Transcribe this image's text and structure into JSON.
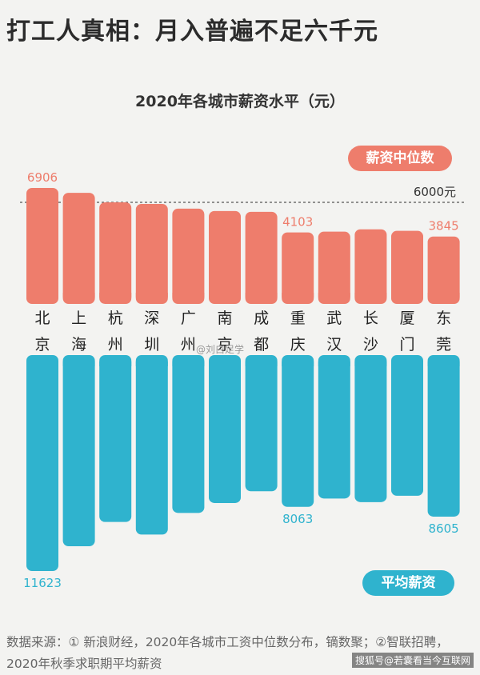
{
  "headline": "打工人真相：月入普遍不足六千元",
  "chart_data": {
    "type": "bar",
    "title": "2020年各城市薪资水平（元）",
    "categories": [
      "北京",
      "上海",
      "杭州",
      "深圳",
      "广州",
      "南京",
      "成都",
      "重庆",
      "武汉",
      "长沙",
      "厦门",
      "东莞"
    ],
    "series": [
      {
        "name": "薪资中位数",
        "color": "#ee7d6c",
        "values": [
          6906,
          6600,
          6000,
          5900,
          5600,
          5450,
          5400,
          4103,
          4150,
          4300,
          4200,
          3845
        ],
        "labeled_indices": [
          0,
          7,
          11
        ]
      },
      {
        "name": "平均薪资",
        "color": "#2fb3ce",
        "values": [
          11623,
          10250,
          8900,
          9600,
          8400,
          7850,
          7200,
          8063,
          7600,
          7800,
          7450,
          8605
        ],
        "labeled_indices": [
          0,
          7,
          11
        ]
      }
    ],
    "reference_line": {
      "value": 6000,
      "label": "6000元"
    },
    "legend_placement": "right"
  },
  "source_text": "数据来源：① 新浪财经，2020年各城市工资中位数分布，镝数聚；②智联招聘，2020年秋季求职期平均薪资",
  "watermark_text": "搜狐号@若囊看当今互联网",
  "center_mark": "@刘白足学"
}
